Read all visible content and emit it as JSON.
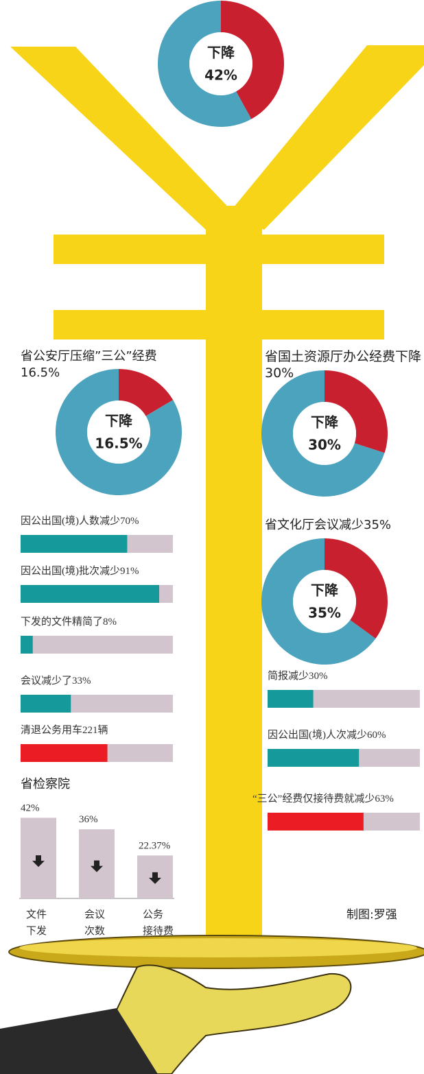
{
  "chart_data": [
    {
      "type": "pie",
      "donut": true,
      "center_label": "下降",
      "values": [
        42,
        58
      ],
      "value_labels": [
        "42%",
        null
      ],
      "colors": [
        "#c8202f",
        "#4ba3bd"
      ]
    },
    {
      "type": "pie",
      "donut": true,
      "title": "省公安厅压缩”三公”经费16.5%",
      "center_label": "下降",
      "values": [
        16.5,
        83.5
      ],
      "value_labels": [
        "16.5%",
        null
      ],
      "colors": [
        "#c8202f",
        "#4ba3bd"
      ]
    },
    {
      "type": "pie",
      "donut": true,
      "title": "省国土资源厅办公经费下降30%",
      "center_label": "下降",
      "values": [
        30,
        70
      ],
      "value_labels": [
        "30%",
        null
      ],
      "colors": [
        "#c8202f",
        "#4ba3bd"
      ]
    },
    {
      "type": "pie",
      "donut": true,
      "title": "省文化厅会议减少35%",
      "center_label": "下降",
      "values": [
        35,
        65
      ],
      "value_labels": [
        "35%",
        null
      ],
      "colors": [
        "#c8202f",
        "#4ba3bd"
      ]
    },
    {
      "type": "bar",
      "orientation": "horizontal",
      "categories": [
        "因公出国(境)人数减少70%",
        "因公出国(境)批次减少91%",
        "下发的文件精简了8%",
        "会议减少了33%",
        "清退公务用车221辆"
      ],
      "values": [
        70,
        91,
        8,
        33,
        57
      ],
      "colors": [
        "#16999a",
        "#16999a",
        "#16999a",
        "#16999a",
        "#ec1c24"
      ],
      "track_color": "#d3c5cd",
      "xlim": [
        0,
        100
      ]
    },
    {
      "type": "bar",
      "orientation": "horizontal",
      "categories": [
        "简报减少30%",
        "因公出国(境)人次减少60%",
        "“三公”经费仅接待费就减少63%"
      ],
      "values": [
        30,
        60,
        63
      ],
      "colors": [
        "#16999a",
        "#16999a",
        "#ec1c24"
      ],
      "track_color": "#d3c5cd",
      "xlim": [
        0,
        100
      ]
    },
    {
      "type": "bar",
      "orientation": "vertical",
      "title": "省检察院",
      "categories": [
        "文件\n下发",
        "会议\n次数",
        "公务\n接待费"
      ],
      "values": [
        42,
        36,
        22.37
      ],
      "value_labels": [
        "42%",
        "36%",
        "22.37%"
      ],
      "color": "#d3c5cd",
      "ylim": [
        0,
        45
      ]
    }
  ],
  "credit": "制图:罗强"
}
